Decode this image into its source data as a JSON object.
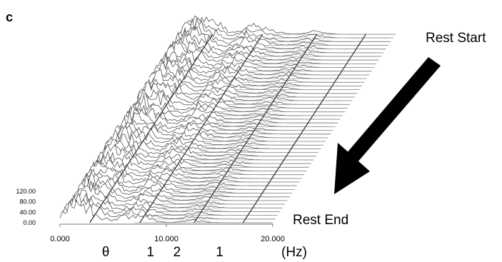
{
  "panel_letter": "c",
  "annotations": {
    "rest_start": "Rest Start",
    "rest_end": "Rest End"
  },
  "colors": {
    "trace": "#555555",
    "plane": "#9a9a9a",
    "band_line": "#3a3a3a",
    "arrow": "#000000",
    "background": "#ffffff"
  },
  "chart_data": {
    "type": "area",
    "description_type": "waterfall spectrogram",
    "x_tick_labels": [
      "0.000",
      "10.000",
      "20.000"
    ],
    "x_ticks": [
      0,
      10,
      20
    ],
    "xlim": [
      0,
      20
    ],
    "x_unit_label": "(Hz)",
    "y_tick_labels": [
      "0.00",
      "40.00",
      "80.00",
      "120.00"
    ],
    "y_ticks": [
      0,
      40,
      80,
      120
    ],
    "ylim": [
      0,
      120
    ],
    "band_labels": [
      {
        "label": "θ",
        "x": 4.3
      },
      {
        "label": "1",
        "x": 8.5
      },
      {
        "label": "2",
        "x": 11.0
      },
      {
        "label": "1",
        "x": 15.0
      }
    ],
    "band_boundaries_hz": [
      2.8,
      7.5,
      12.6,
      17.2
    ],
    "time_slices": 52,
    "peaks": [
      {
        "freq": 1.2,
        "amp": 70
      },
      {
        "freq": 3.0,
        "amp": 45
      },
      {
        "freq": 6.5,
        "amp": 30
      },
      {
        "freq": 8.0,
        "amp": 18
      },
      {
        "freq": 12.5,
        "amp": 12
      }
    ]
  }
}
